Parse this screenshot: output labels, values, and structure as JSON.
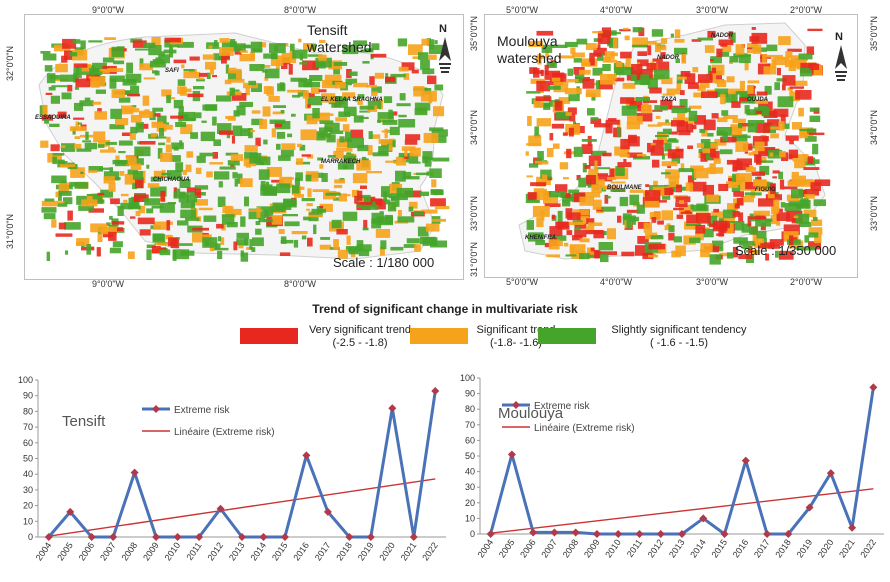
{
  "maps": [
    {
      "title": "Tensift\nwatershed",
      "scale": "Scale : 1/180 000",
      "lon_labels": [
        "9°0'0\"W",
        "8°0'0\"W"
      ],
      "lat_labels": [
        "32°0'0\"N",
        "31°0'0\"N"
      ],
      "cities": [
        "SAFI",
        "EL KELAA SRAGHNA",
        "ESSAOUIRA",
        "MARRAKECH",
        "CHICHAOUA"
      ]
    },
    {
      "title": "Moulouya\nwatershed",
      "scale": "Scale : 1/350 000",
      "lon_labels": [
        "5°0'0\"W",
        "4°0'0\"W",
        "3°0'0\"W",
        "2°0'0\"W"
      ],
      "lat_labels": [
        "35°0'0\"N",
        "34°0'0\"N",
        "33°0'0\"N"
      ],
      "lat_labels_left": [
        "35°0'0\"N",
        "34°0'0\"N",
        "33°0'0\"N",
        "31°0'0\"N"
      ],
      "cities": [
        "NADOR",
        "NADOR",
        "TAZA",
        "OUJDA",
        "BOULMANE",
        "FIGUIG",
        "KHENIFRA"
      ]
    }
  ],
  "north_label": "N",
  "legend": {
    "title": "Trend of significant change in multivariate risk",
    "items": [
      {
        "label": "Very significant trend",
        "range": "(-2.5 - -1.8)",
        "color": "#e8281e"
      },
      {
        "label": "Significant trend",
        "range": "(-1.8- -1.6)",
        "color": "#f7a21b"
      },
      {
        "label": "Slightly significant tendency",
        "range": "( -1.6 - -1.5)",
        "color": "#45a52a"
      }
    ]
  },
  "chart_data": [
    {
      "type": "line",
      "title": "Tensift",
      "x": [
        "2004",
        "2005",
        "2006",
        "2007",
        "2008",
        "2009",
        "2010",
        "2011",
        "2012",
        "2013",
        "2014",
        "2015",
        "2016",
        "2017",
        "2018",
        "2019",
        "2020",
        "2021",
        "2022"
      ],
      "series": [
        {
          "name": "Extreme risk",
          "color": "#4a72b8",
          "marker_color": "#b0394a",
          "values": [
            0,
            16,
            0,
            0,
            41,
            0,
            0,
            0,
            18,
            0,
            0,
            0,
            52,
            16,
            0,
            0,
            82,
            0,
            93
          ]
        },
        {
          "name": "Linéaire (Extreme risk)",
          "color": "#cc3333",
          "trend": [
            0.5,
            37
          ]
        }
      ],
      "ylim": [
        0,
        100
      ],
      "yticks": [
        0,
        10,
        20,
        30,
        40,
        50,
        60,
        70,
        80,
        90,
        100
      ],
      "grid": false,
      "legend": "top-left"
    },
    {
      "type": "line",
      "title": "Moulouya",
      "x": [
        "2004",
        "2005",
        "2006",
        "2007",
        "2008",
        "2009",
        "2010",
        "2011",
        "2012",
        "2013",
        "2014",
        "2015",
        "2016",
        "2017",
        "2018",
        "2019",
        "2020",
        "2021",
        "2022"
      ],
      "series": [
        {
          "name": "Extreme risk",
          "color": "#4a72b8",
          "marker_color": "#b0394a",
          "values": [
            0,
            51,
            1,
            1,
            1,
            0,
            0,
            0,
            0,
            0,
            10,
            0,
            47,
            0,
            0,
            17,
            39,
            4,
            94
          ]
        },
        {
          "name": "Linéaire (Extreme risk)",
          "color": "#cc3333",
          "trend": [
            0.5,
            29
          ]
        }
      ],
      "ylim": [
        0,
        100
      ],
      "yticks": [
        0,
        10,
        20,
        30,
        40,
        50,
        60,
        70,
        80,
        90,
        100
      ],
      "grid": false,
      "legend": "top-left"
    }
  ]
}
